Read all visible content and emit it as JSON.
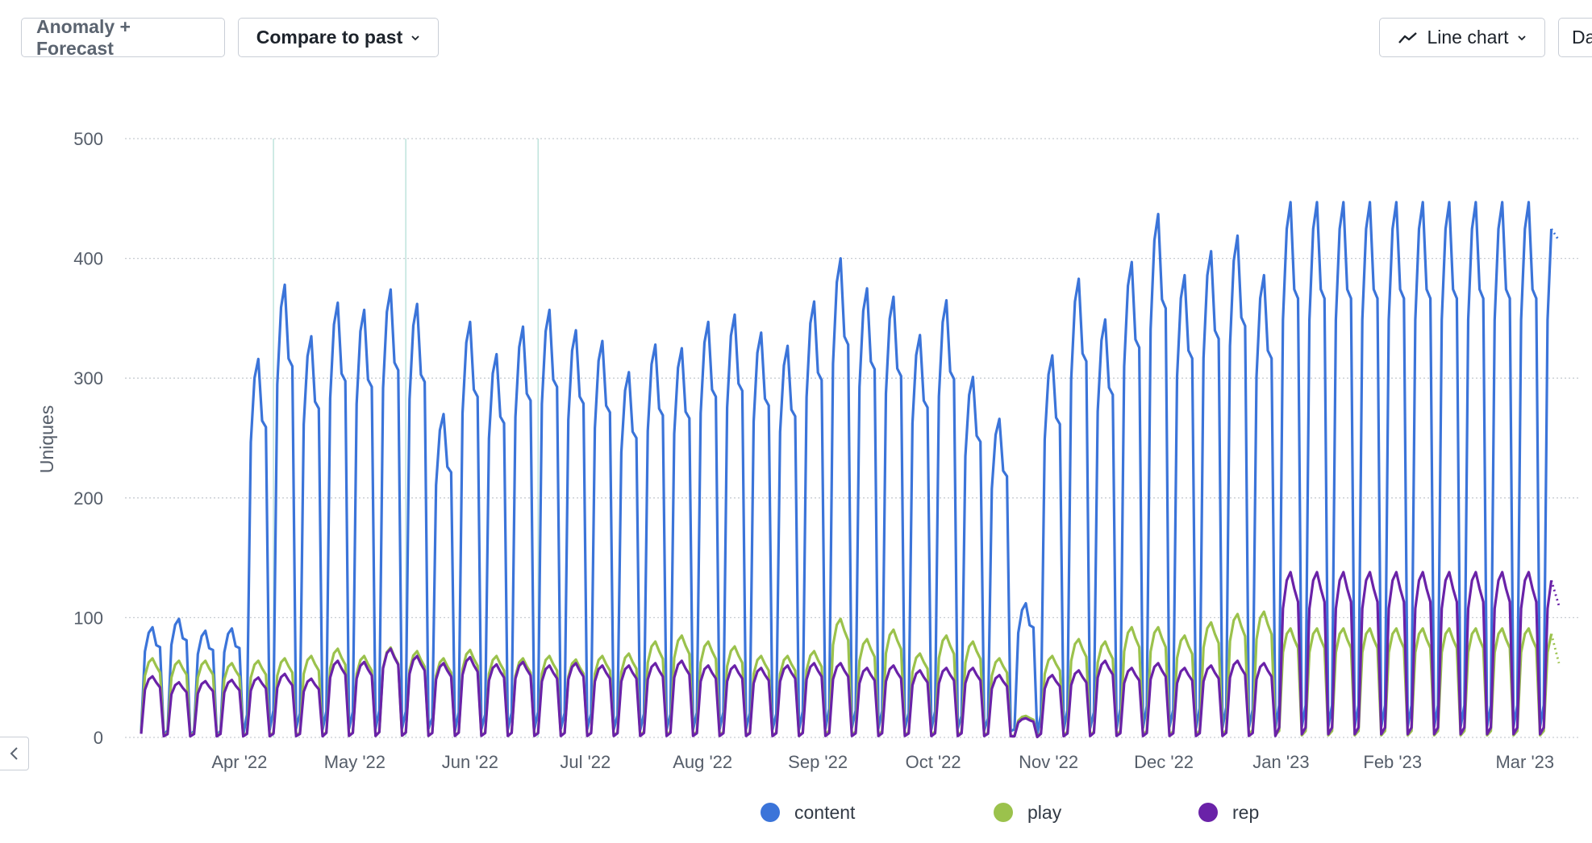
{
  "toolbar": {
    "anomaly_label": "Anomaly + Forecast",
    "compare_label": "Compare to past",
    "chart_type_label": "Line chart",
    "date_label": "Da"
  },
  "icons": {
    "compare_chevron": "chevron-down-icon",
    "chart_type_icon": "line-chart-icon",
    "chart_type_chevron": "chevron-down-icon",
    "collapse": "chevron-left-icon"
  },
  "colors": {
    "content": "#3b74d9",
    "play": "#9bc24c",
    "rep": "#6a22a8",
    "grid": "#c8ccd2",
    "marker": "#bfe3dc"
  },
  "chart_data": {
    "type": "line",
    "ylabel": "Uniques",
    "ylim": [
      0,
      500
    ],
    "yticks": [
      "0",
      "100",
      "200",
      "300",
      "400",
      "500"
    ],
    "xticks": [
      "Apr '22",
      "May '22",
      "Jun '22",
      "Jul '22",
      "Aug '22",
      "Sep '22",
      "Oct '22",
      "Nov '22",
      "Dec '22",
      "Jan '23",
      "Feb '23",
      "Mar '23"
    ],
    "start_date": "2022-03-21",
    "end_date": "2023-03-31",
    "grid": true,
    "legend_position": "bottom",
    "markers": [
      "2022-04-25",
      "2022-05-30",
      "2022-07-04"
    ],
    "series": [
      {
        "name": "content",
        "weekly_peaks": [
          92,
          99,
          89,
          91,
          316,
          378,
          335,
          363,
          357,
          374,
          362,
          270,
          347,
          320,
          343,
          357,
          340,
          331,
          305,
          328,
          325,
          347,
          353,
          338,
          327,
          364,
          400,
          375,
          368,
          336,
          365,
          301,
          266,
          112,
          319,
          383,
          349,
          397,
          437,
          386,
          406,
          419,
          386,
          447
        ],
        "forecast_end": 415
      },
      {
        "name": "play",
        "weekly_peaks": [
          66,
          64,
          64,
          62,
          64,
          66,
          68,
          74,
          68,
          75,
          72,
          66,
          73,
          68,
          66,
          68,
          65,
          68,
          70,
          80,
          85,
          80,
          76,
          68,
          68,
          72,
          99,
          82,
          90,
          70,
          85,
          80,
          66,
          18,
          68,
          82,
          80,
          92,
          92,
          85,
          96,
          103,
          105,
          91
        ],
        "forecast_end": 62
      },
      {
        "name": "rep",
        "weekly_peaks": [
          51,
          46,
          47,
          48,
          50,
          53,
          49,
          64,
          63,
          74,
          68,
          62,
          67,
          61,
          63,
          60,
          62,
          60,
          60,
          62,
          64,
          60,
          60,
          58,
          60,
          62,
          62,
          58,
          60,
          56,
          58,
          58,
          52,
          16,
          52,
          56,
          64,
          58,
          62,
          58,
          60,
          64,
          62,
          138
        ],
        "forecast_end": 110
      }
    ]
  }
}
